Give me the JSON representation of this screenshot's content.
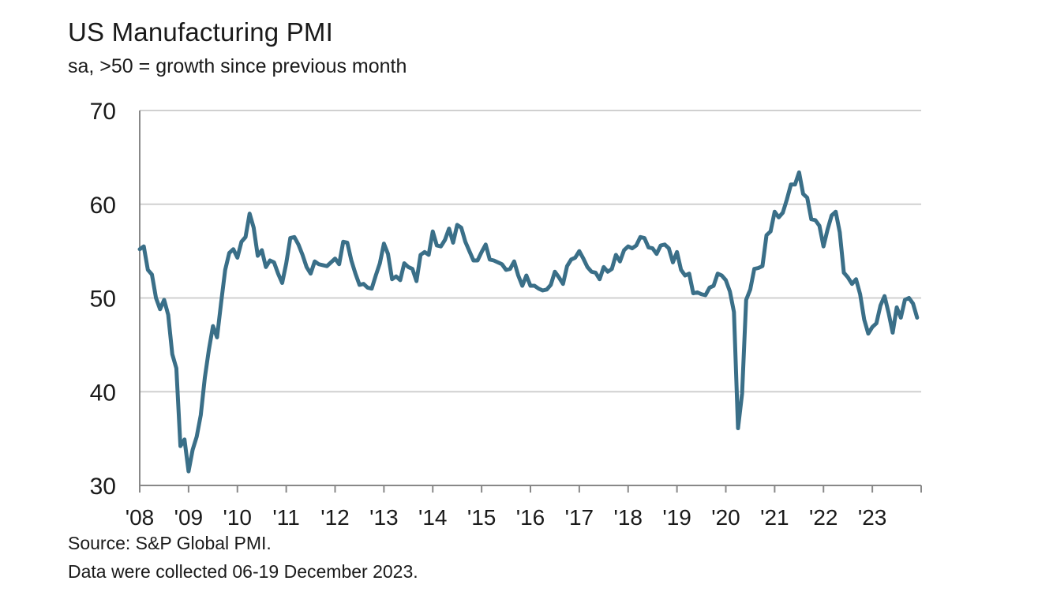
{
  "title": "US Manufacturing PMI",
  "subtitle": "sa, >50 = growth since previous month",
  "footnotes": [
    "Source: S&P Global PMI.",
    "Data were collected 06-19 December 2023."
  ],
  "colors": {
    "line": "#3a6f88",
    "grid": "#d0d0d0",
    "axis": "#888888"
  },
  "chart_data": {
    "type": "line",
    "ylim": [
      30,
      70
    ],
    "yticks": [
      30,
      40,
      50,
      60,
      70
    ],
    "xlim": [
      2008.0,
      2024.0
    ],
    "xtick_labels": [
      "'08",
      "'09",
      "'10",
      "'11",
      "'12",
      "'13",
      "'14",
      "'15",
      "'16",
      "'17",
      "'18",
      "'19",
      "'20",
      "'21",
      "'22",
      "'23"
    ],
    "xtick_years": [
      2008,
      2009,
      2010,
      2011,
      2012,
      2013,
      2014,
      2015,
      2016,
      2017,
      2018,
      2019,
      2020,
      2021,
      2022,
      2023
    ],
    "grid": "horizontal",
    "series": [
      {
        "start": "2008-01",
        "values": [
          55.2,
          55.5,
          53.0,
          52.5,
          50.0,
          48.8,
          49.8,
          48.2,
          44.0,
          42.5,
          34.2,
          34.9,
          31.5,
          33.8,
          35.2,
          37.5,
          41.5,
          44.5,
          47.0,
          45.8,
          49.5,
          53.0,
          54.8,
          55.2,
          54.3,
          56.0,
          56.5,
          59.0,
          57.5,
          54.5,
          55.1,
          53.3,
          54.0,
          53.8,
          52.6,
          51.6,
          53.7,
          56.4,
          56.5,
          55.7,
          54.6,
          53.3,
          52.6,
          53.9,
          53.6,
          53.5,
          53.4,
          53.8,
          54.2,
          53.6,
          56.0,
          55.9,
          54.0,
          52.6,
          51.4,
          51.5,
          51.1,
          51.0,
          52.4,
          53.7,
          55.8,
          54.7,
          52.0,
          52.3,
          51.9,
          53.7,
          53.3,
          53.1,
          51.8,
          54.6,
          54.9,
          54.6,
          57.1,
          55.6,
          55.5,
          56.2,
          57.4,
          55.9,
          57.8,
          57.5,
          56.0,
          55.0,
          54.0,
          54.0,
          54.9,
          55.7,
          54.1,
          54.0,
          53.8,
          53.6,
          53.0,
          53.1,
          53.9,
          52.4,
          51.3,
          52.4,
          51.3,
          51.3,
          51.0,
          50.8,
          50.9,
          51.4,
          52.8,
          52.2,
          51.5,
          53.4,
          54.1,
          54.3,
          55.0,
          54.2,
          53.3,
          52.8,
          52.7,
          52.0,
          53.3,
          52.8,
          53.1,
          54.6,
          53.9,
          55.1,
          55.5,
          55.3,
          55.6,
          56.5,
          56.4,
          55.4,
          55.3,
          54.7,
          55.6,
          55.7,
          55.3,
          53.8,
          54.9,
          53.0,
          52.4,
          52.6,
          50.5,
          50.6,
          50.4,
          50.3,
          51.1,
          51.3,
          52.6,
          52.4,
          51.9,
          50.7,
          48.5,
          36.1,
          39.8,
          49.8,
          50.9,
          53.1,
          53.2,
          53.4,
          56.7,
          57.1,
          59.2,
          58.6,
          59.1,
          60.5,
          62.1,
          62.1,
          63.4,
          61.1,
          60.7,
          58.4,
          58.3,
          57.7,
          55.5,
          57.3,
          58.8,
          59.2,
          57.0,
          52.7,
          52.2,
          51.5,
          52.0,
          50.4,
          47.7,
          46.2,
          46.9,
          47.3,
          49.2,
          50.2,
          48.4,
          46.3,
          49.0,
          47.9,
          49.8,
          50.0,
          49.4,
          47.9
        ]
      }
    ]
  }
}
